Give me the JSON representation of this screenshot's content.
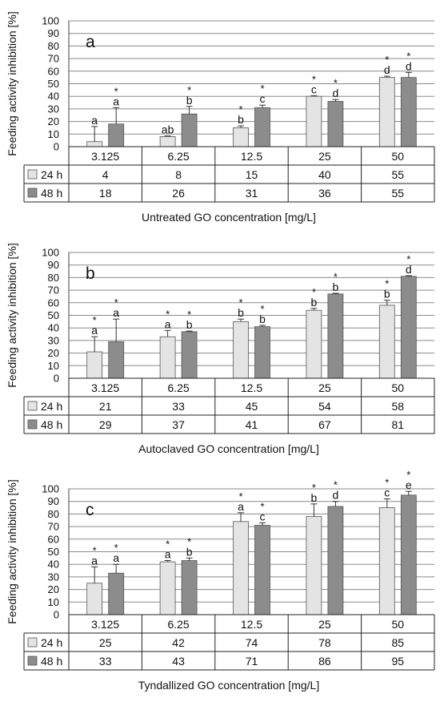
{
  "figure": {
    "ylabel": "Feeding activity inhibition [%]",
    "series_names": [
      "24 h",
      "48 h"
    ],
    "colors": {
      "s24": "#e4e4e4",
      "s48": "#8c8c8c",
      "grid": "#8a8a8a",
      "axis": "#444444"
    }
  },
  "chart_data": [
    {
      "type": "bar",
      "panel_label": "a",
      "categories": [
        "3.125",
        "6.25",
        "12.5",
        "25",
        "50"
      ],
      "xlabel": "Untreated GO concentration [mg/L]",
      "ylabel": "Feeding activity inhibition [%]",
      "ylim": [
        0,
        100
      ],
      "yticks": [
        0,
        10,
        20,
        30,
        40,
        50,
        60,
        70,
        80,
        90,
        100
      ],
      "grid": true,
      "series": [
        {
          "name": "24 h",
          "values": [
            4,
            8,
            15,
            40,
            55
          ],
          "table_values": [
            "4",
            "8",
            "15",
            "40",
            "55"
          ],
          "errors": [
            12,
            0.5,
            1.5,
            0.5,
            1
          ],
          "letters": [
            "a",
            "ab",
            "b",
            "c",
            "d"
          ],
          "stars": [
            false,
            false,
            true,
            true,
            true
          ]
        },
        {
          "name": "48 h",
          "values": [
            18,
            26,
            31,
            36,
            55
          ],
          "table_values": [
            "18",
            "26",
            "31",
            "36",
            "55"
          ],
          "errors": [
            13,
            6,
            2,
            1.5,
            4
          ],
          "letters": [
            "a",
            "b",
            "c",
            "d",
            "d"
          ],
          "stars": [
            true,
            true,
            true,
            true,
            true
          ]
        }
      ]
    },
    {
      "type": "bar",
      "panel_label": "b",
      "categories": [
        "3.125",
        "6.25",
        "12.5",
        "25",
        "50"
      ],
      "xlabel": "Autoclaved GO concentration [mg/L]",
      "ylabel": "Feeding activity inhibition [%]",
      "ylim": [
        0,
        100
      ],
      "yticks": [
        0,
        10,
        20,
        30,
        40,
        50,
        60,
        70,
        80,
        90,
        100
      ],
      "grid": true,
      "series": [
        {
          "name": "24 h",
          "values": [
            21,
            33,
            45,
            54,
            58
          ],
          "table_values": [
            "21",
            "33",
            "45",
            "54",
            "58"
          ],
          "errors": [
            12,
            5,
            2,
            1.5,
            4
          ],
          "letters": [
            "a",
            "a",
            "b",
            "b",
            "b"
          ],
          "stars": [
            true,
            true,
            true,
            true,
            true
          ]
        },
        {
          "name": "48 h",
          "values": [
            29,
            37,
            41,
            67,
            81
          ],
          "table_values": [
            "29",
            "37",
            "41",
            "67",
            "81"
          ],
          "errors": [
            18,
            0.5,
            1,
            0.5,
            0.5
          ],
          "letters": [
            "a",
            "b",
            "b",
            "b",
            "d"
          ],
          "stars": [
            true,
            true,
            true,
            true,
            true
          ]
        }
      ]
    },
    {
      "type": "bar",
      "panel_label": "c",
      "categories": [
        "3.125",
        "6.25",
        "12.5",
        "25",
        "50"
      ],
      "xlabel": "Tyndallized GO concentration [mg/L]",
      "ylabel": "Feeding activity inhibition [%]",
      "ylim": [
        0,
        100
      ],
      "yticks": [
        0,
        10,
        20,
        30,
        40,
        50,
        60,
        70,
        80,
        90,
        100
      ],
      "grid": true,
      "series": [
        {
          "name": "24 h",
          "values": [
            25,
            42,
            74,
            78,
            85
          ],
          "table_values": [
            "25",
            "42",
            "74",
            "78",
            "85"
          ],
          "errors": [
            13,
            1,
            7,
            10,
            7
          ],
          "letters": [
            "a",
            "a",
            "a",
            "b",
            "c"
          ],
          "stars": [
            true,
            true,
            true,
            true,
            true
          ]
        },
        {
          "name": "48 h",
          "values": [
            33,
            43,
            71,
            86,
            95
          ],
          "table_values": [
            "33",
            "43",
            "71",
            "86",
            "95"
          ],
          "errors": [
            7,
            2,
            2,
            4,
            3
          ],
          "letters": [
            "a",
            "b",
            "c",
            "d",
            "e"
          ],
          "stars": [
            true,
            true,
            true,
            true,
            true
          ]
        }
      ]
    }
  ]
}
